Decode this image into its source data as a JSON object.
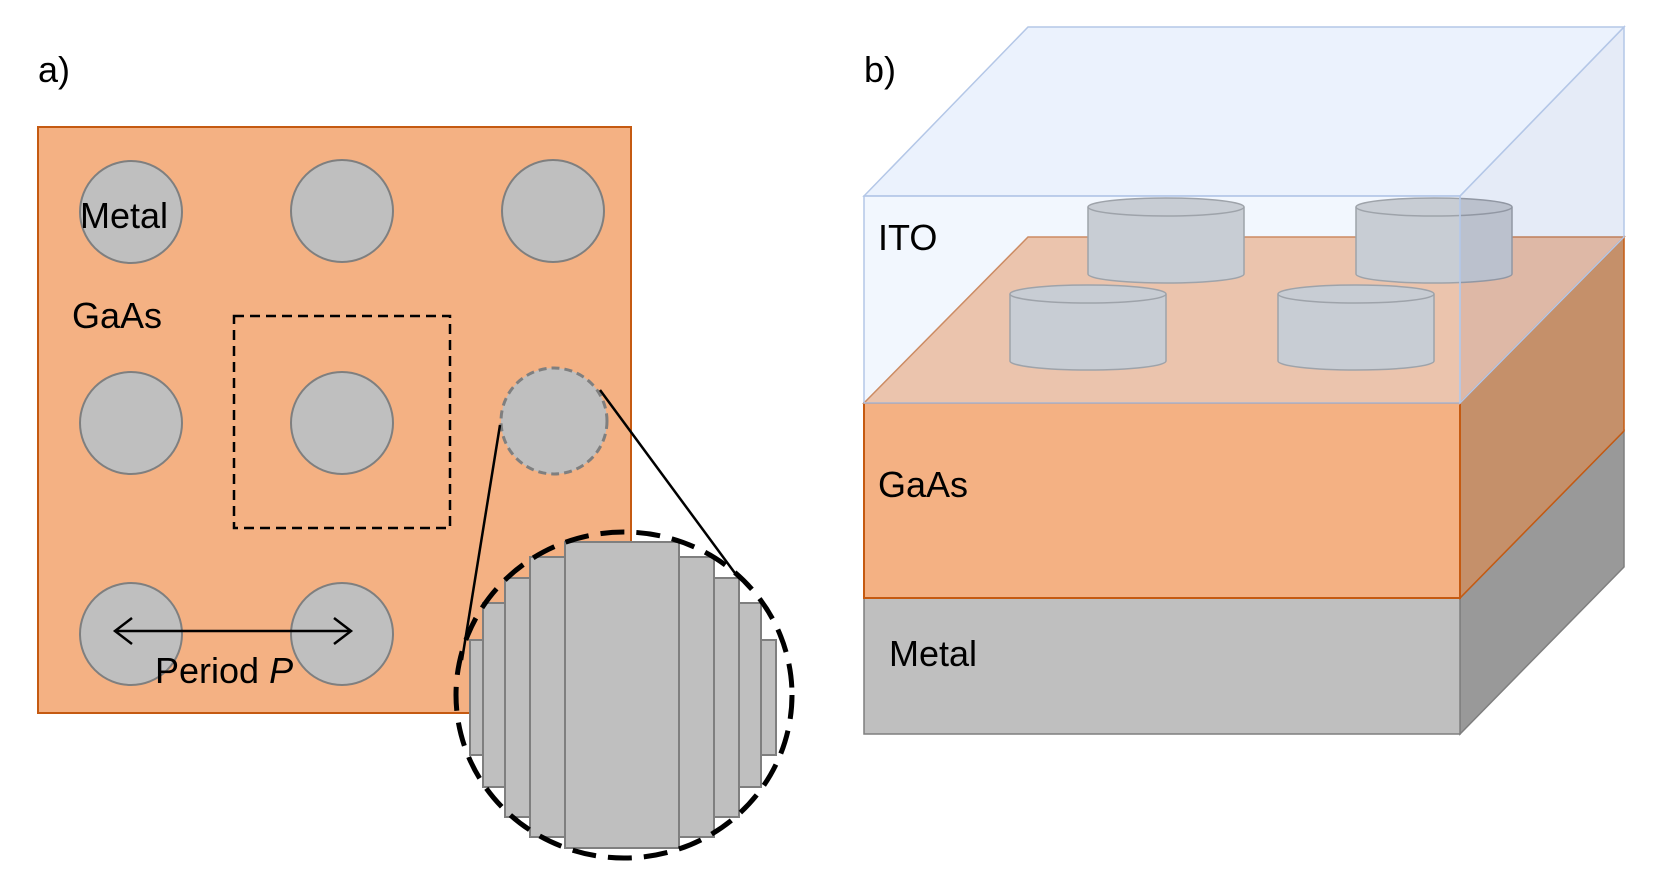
{
  "panel_a": {
    "panel_label": "a)",
    "metal_label": "Metal",
    "substrate_label": "GaAs",
    "period_label": "Period ",
    "period_symbol": "P"
  },
  "panel_b": {
    "panel_label": "b)",
    "top_layer_label": "ITO",
    "middle_layer_label": "GaAs",
    "bottom_layer_label": "Metal"
  },
  "colors": {
    "gaas_fill": "#f4b183",
    "gaas_edge": "#c55a11",
    "metal_fill": "#bfbfbf",
    "metal_edge": "#7f7f7f",
    "ito_fill": "#dae8fc"
  }
}
